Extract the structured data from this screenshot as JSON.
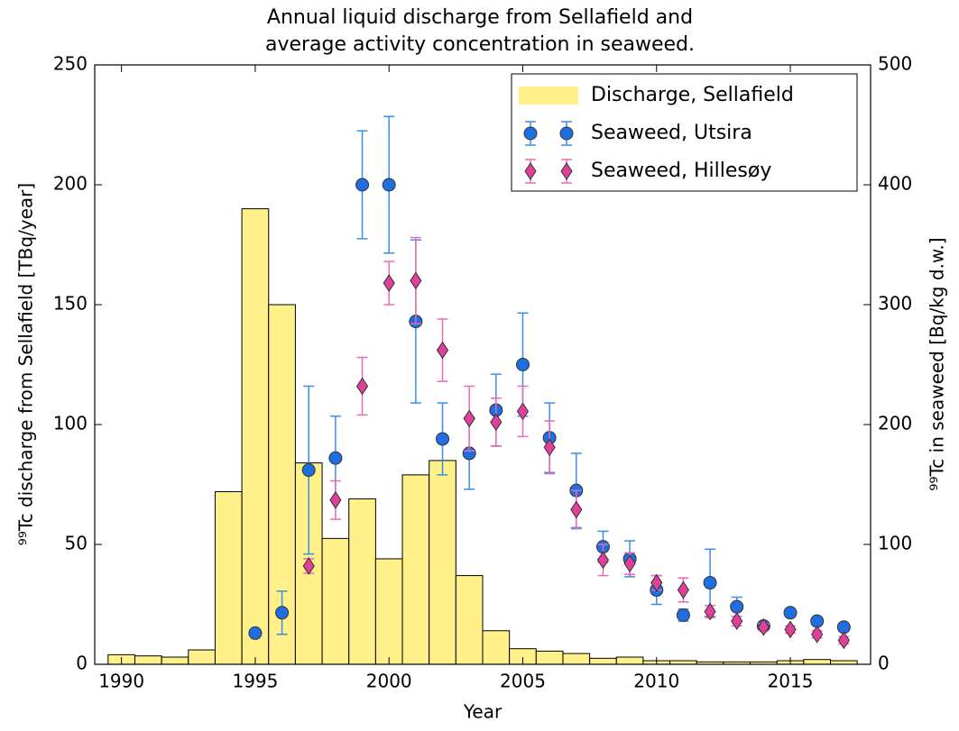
{
  "chart_data": {
    "type": "bar",
    "title": [
      "Annual liquid discharge from Sellafield and",
      "average activity concentration in seaweed."
    ],
    "xlabel": "Year",
    "ylabel": "⁹⁹Tc discharge from Sellafield [TBq/year]",
    "y2label": "⁹⁹Tc in seaweed [Bq/kg d.w.]",
    "xlim": [
      1989,
      2018
    ],
    "xticks": [
      1990,
      1995,
      2000,
      2005,
      2010,
      2015
    ],
    "ylim": [
      0,
      250
    ],
    "yticks": [
      0,
      50,
      100,
      150,
      200,
      250
    ],
    "y2lim": [
      0,
      500
    ],
    "y2ticks": [
      0,
      100,
      200,
      300,
      400,
      500
    ],
    "legend": "upper right",
    "series": [
      {
        "name": "Discharge, Sellafield",
        "type": "bar",
        "color": "#fff08a",
        "x": [
          1990,
          1991,
          1992,
          1993,
          1994,
          1995,
          1996,
          1997,
          1998,
          1999,
          2000,
          2001,
          2002,
          2003,
          2004,
          2005,
          2006,
          2007,
          2008,
          2009,
          2010,
          2011,
          2012,
          2013,
          2014,
          2015,
          2016,
          2017
        ],
        "values": [
          4,
          3.5,
          3,
          6,
          72,
          190,
          150,
          84,
          52.5,
          69,
          44,
          79,
          85,
          37,
          14,
          6.5,
          5.5,
          4.5,
          2.5,
          3,
          1.5,
          1.5,
          1,
          1,
          1,
          1.5,
          2,
          1.5
        ]
      },
      {
        "name": "Seaweed, Utsira",
        "type": "scatter",
        "marker": "circle",
        "axis": "y2",
        "color": "#1f6fe0",
        "error_color": "#3a8ee6",
        "x": [
          1995,
          1996,
          1997,
          1998,
          1999,
          2000,
          2001,
          2002,
          2003,
          2004,
          2005,
          2006,
          2007,
          2008,
          2009,
          2010,
          2011,
          2012,
          2013,
          2014,
          2015,
          2016,
          2017
        ],
        "values": [
          26,
          43,
          162,
          172,
          400,
          400,
          286,
          188,
          176,
          212,
          250,
          189,
          145,
          98,
          88,
          62,
          41,
          68,
          48,
          32,
          43,
          36,
          31
        ],
        "errors": [
          0,
          18,
          70,
          35,
          45,
          57,
          68,
          30,
          30,
          30,
          43,
          29,
          31,
          13,
          15,
          12,
          5,
          28,
          8,
          3,
          3,
          3,
          3
        ]
      },
      {
        "name": "Seaweed, Hillesøy",
        "type": "scatter",
        "marker": "diamond",
        "axis": "y2",
        "color": "#e0409a",
        "error_color": "#e86ab8",
        "x": [
          1997,
          1998,
          1999,
          2000,
          2001,
          2002,
          2003,
          2004,
          2005,
          2006,
          2007,
          2008,
          2009,
          2010,
          2011,
          2012,
          2013,
          2014,
          2015,
          2016,
          2017
        ],
        "values": [
          82,
          137,
          232,
          318,
          320,
          262,
          205,
          202,
          211,
          181,
          129,
          87,
          84,
          68,
          62,
          44,
          36,
          31,
          29,
          25,
          20
        ],
        "errors": [
          6,
          16,
          24,
          18,
          36,
          26,
          27,
          20,
          21,
          22,
          16,
          13,
          9,
          6,
          10,
          5,
          4,
          3,
          3,
          3,
          3
        ]
      }
    ]
  }
}
